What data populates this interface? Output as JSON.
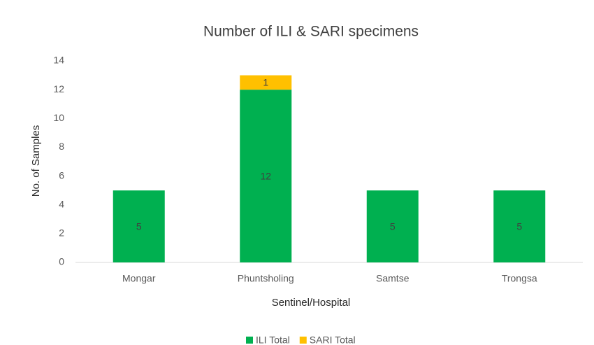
{
  "chart_data": {
    "type": "stacked_bar",
    "title": "Number of ILI & SARI specimens",
    "x_label": "Sentinel/Hospital",
    "y_label": "No. of Samples",
    "categories": [
      "Mongar",
      "Phuntsholing",
      "Samtse",
      "Trongsa"
    ],
    "series": [
      {
        "name": "ILI Total",
        "color": "#00b050",
        "values": [
          5,
          12,
          5,
          5
        ]
      },
      {
        "name": "SARI Total",
        "color": "#ffc000",
        "values": [
          null,
          1,
          null,
          null
        ]
      }
    ],
    "ylim": [
      0,
      14
    ],
    "yticks": [
      0,
      2,
      4,
      6,
      8,
      10,
      12,
      14
    ],
    "grid": false,
    "legend": "bottom"
  }
}
